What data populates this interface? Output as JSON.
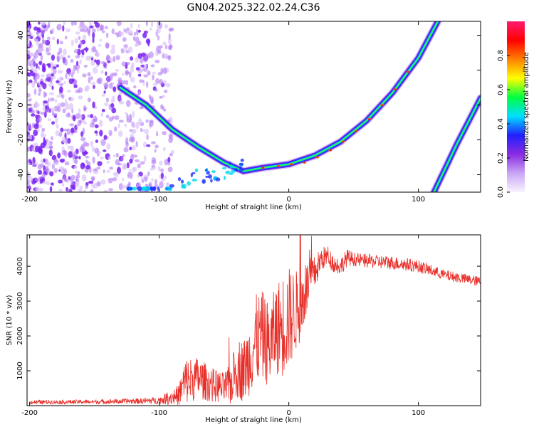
{
  "page": {
    "title": "GN04.2025.322.02.24.C36"
  },
  "colors": {
    "line": "#e8302a",
    "purple": "#7a2cf0",
    "axis": "#000000"
  },
  "chart_data": [
    {
      "type": "heatmap",
      "title": "GN04.2025.322.02.24.C36",
      "xlabel": "Height of straight line (km)",
      "ylabel": "Frequency (Hz)",
      "xlim": [
        -202,
        148
      ],
      "ylim": [
        -50,
        48
      ],
      "x_ticks": [
        -200,
        -100,
        0,
        100
      ],
      "y_ticks": [
        -40,
        -20,
        0,
        20,
        40
      ],
      "x_tick_labels": [
        "-200",
        "-100",
        "0",
        "100"
      ],
      "y_tick_labels": [
        "-40",
        "-20",
        "0",
        "20",
        "40"
      ],
      "colorbar": {
        "label": "Normalized spectral amplitude",
        "range": [
          0,
          1
        ],
        "ticks": [
          0.0,
          0.2,
          0.4,
          0.6,
          0.8
        ],
        "tick_labels": [
          "0.0",
          "0.2",
          "0.4",
          "0.6",
          "0.8"
        ],
        "colormap": [
          "#f8f4ff",
          "#c9a6f5",
          "#8a2be2",
          "#2020ff",
          "#00e0ff",
          "#00ff40",
          "#ffff00",
          "#ff8000",
          "#ff0000",
          "#ff1a70"
        ]
      },
      "features": [
        {
          "name": "broadband noise",
          "x_range": [
            -202,
            -95
          ],
          "amplitude": 0.15
        },
        {
          "name": "main dispersion curve",
          "points": [
            [
              -130,
              10
            ],
            [
              -110,
              0
            ],
            [
              -90,
              -14
            ],
            [
              -70,
              -24
            ],
            [
              -50,
              -33
            ],
            [
              -35,
              -38
            ],
            [
              -20,
              -36
            ],
            [
              0,
              -34
            ],
            [
              20,
              -29
            ],
            [
              40,
              -21
            ],
            [
              60,
              -9
            ],
            [
              80,
              7
            ],
            [
              100,
              27
            ],
            [
              115,
              48
            ]
          ]
        },
        {
          "name": "secondary line",
          "points": [
            [
              112,
              -50
            ],
            [
              130,
              -22
            ],
            [
              148,
              4
            ]
          ]
        }
      ]
    },
    {
      "type": "line",
      "title": "",
      "xlabel": "Height of straight line (km)",
      "ylabel": "SNR (10 * v/v)",
      "xlim": [
        -202,
        148
      ],
      "ylim": [
        0,
        4900
      ],
      "x_ticks": [
        -200,
        -100,
        0,
        100
      ],
      "y_ticks": [
        1000,
        2000,
        3000,
        4000
      ],
      "x_tick_labels": [
        "-200",
        "-100",
        "0",
        "100"
      ],
      "y_tick_labels": [
        "1000",
        "2000",
        "3000",
        "4000"
      ],
      "series": [
        {
          "name": "SNR",
          "envelope_x": [
            -200,
            -150,
            -120,
            -100,
            -85,
            -80,
            -70,
            -60,
            -50,
            -45,
            -40,
            -35,
            -30,
            -25,
            -20,
            -15,
            -10,
            -5,
            0,
            5,
            10,
            15,
            20,
            25,
            30,
            35,
            40,
            45,
            50,
            60,
            80,
            100,
            120,
            148
          ],
          "envelope_base": [
            100,
            110,
            130,
            150,
            300,
            700,
            800,
            600,
            500,
            600,
            1100,
            1000,
            1400,
            1900,
            2000,
            1700,
            2200,
            2300,
            2500,
            2700,
            2900,
            3500,
            3800,
            4200,
            4300,
            4050,
            4000,
            4250,
            4200,
            4150,
            4100,
            4000,
            3750,
            3550
          ],
          "noise_amplitude": [
            60,
            60,
            80,
            100,
            300,
            700,
            600,
            500,
            450,
            600,
            900,
            900,
            1100,
            1300,
            1300,
            1200,
            1300,
            1500,
            1500,
            1200,
            1000,
            700,
            500,
            350,
            300,
            250,
            250,
            250,
            200,
            200,
            200,
            180,
            150,
            150
          ]
        }
      ]
    }
  ]
}
